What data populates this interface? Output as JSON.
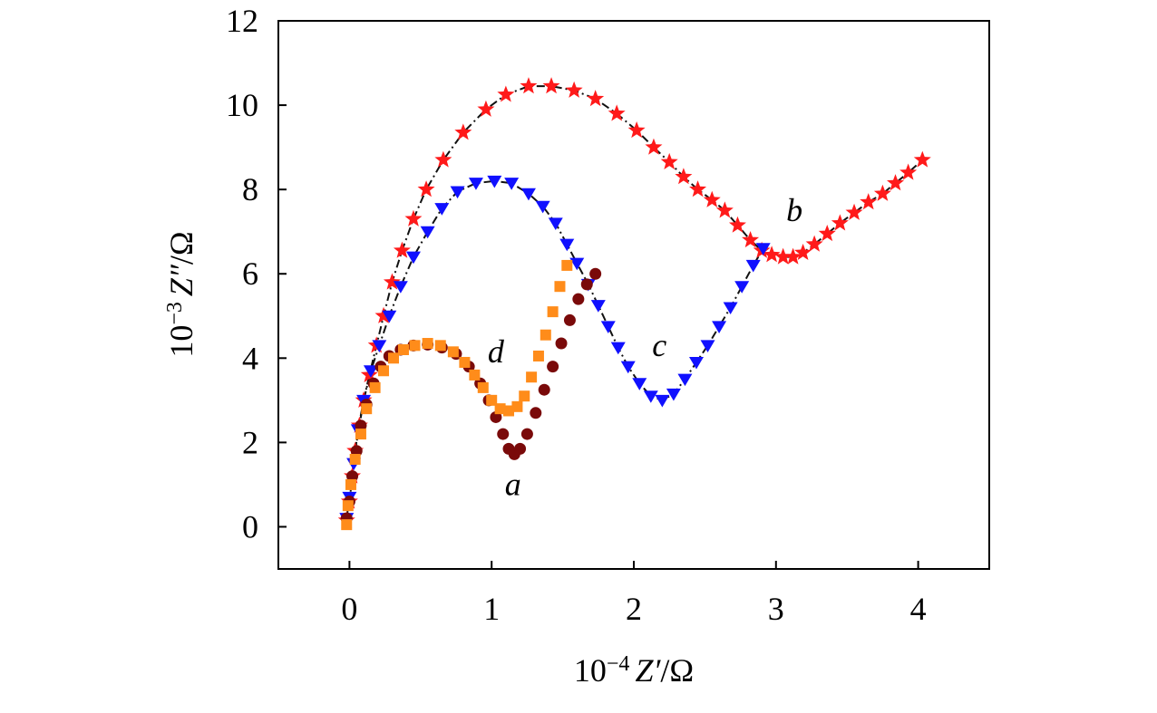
{
  "chart_data": {
    "type": "scatter",
    "title": "",
    "xlabel_prefix": "10",
    "xlabel_exp": "−4",
    "xlabel_var": "Z′",
    "xlabel_unit": "/Ω",
    "ylabel_prefix": "10",
    "ylabel_exp": "−3",
    "ylabel_var": "Z″",
    "ylabel_unit": "/Ω",
    "xlim": [
      -0.5,
      4.5
    ],
    "ylim": [
      -1,
      12
    ],
    "xticks": [
      0,
      1,
      2,
      3,
      4
    ],
    "yticks": [
      0,
      2,
      4,
      6,
      8,
      10,
      12
    ],
    "grid": false,
    "series": [
      {
        "name": "b",
        "marker": "star",
        "color": "#ff1a1a",
        "fit_line": true,
        "label_pos": [
          3.13,
          7.25
        ],
        "points": [
          [
            -0.02,
            0.15
          ],
          [
            0,
            0.6
          ],
          [
            0.02,
            1.2
          ],
          [
            0.04,
            1.8
          ],
          [
            0.07,
            2.4
          ],
          [
            0.1,
            3.0
          ],
          [
            0.14,
            3.6
          ],
          [
            0.19,
            4.3
          ],
          [
            0.24,
            5.0
          ],
          [
            0.3,
            5.8
          ],
          [
            0.37,
            6.55
          ],
          [
            0.45,
            7.3
          ],
          [
            0.54,
            8.0
          ],
          [
            0.66,
            8.7
          ],
          [
            0.8,
            9.35
          ],
          [
            0.96,
            9.9
          ],
          [
            1.1,
            10.25
          ],
          [
            1.26,
            10.45
          ],
          [
            1.42,
            10.45
          ],
          [
            1.58,
            10.35
          ],
          [
            1.73,
            10.15
          ],
          [
            1.88,
            9.8
          ],
          [
            2.02,
            9.4
          ],
          [
            2.14,
            9.0
          ],
          [
            2.25,
            8.65
          ],
          [
            2.35,
            8.3
          ],
          [
            2.45,
            8.0
          ],
          [
            2.55,
            7.75
          ],
          [
            2.64,
            7.5
          ],
          [
            2.73,
            7.15
          ],
          [
            2.82,
            6.8
          ],
          [
            2.9,
            6.55
          ],
          [
            2.97,
            6.45
          ],
          [
            3.05,
            6.4
          ],
          [
            3.12,
            6.4
          ],
          [
            3.19,
            6.5
          ],
          [
            3.27,
            6.7
          ],
          [
            3.36,
            6.95
          ],
          [
            3.45,
            7.2
          ],
          [
            3.55,
            7.45
          ],
          [
            3.65,
            7.7
          ],
          [
            3.75,
            7.9
          ],
          [
            3.84,
            8.15
          ],
          [
            3.93,
            8.4
          ],
          [
            4.03,
            8.7
          ]
        ]
      },
      {
        "name": "c",
        "marker": "triangle-down",
        "color": "#1010ff",
        "fit_line": true,
        "label_pos": [
          2.18,
          4.05
        ],
        "points": [
          [
            -0.02,
            0.2
          ],
          [
            0,
            0.7
          ],
          [
            0.03,
            1.5
          ],
          [
            0.06,
            2.3
          ],
          [
            0.1,
            3.0
          ],
          [
            0.15,
            3.7
          ],
          [
            0.21,
            4.3
          ],
          [
            0.28,
            5.0
          ],
          [
            0.36,
            5.7
          ],
          [
            0.45,
            6.4
          ],
          [
            0.55,
            7.0
          ],
          [
            0.65,
            7.55
          ],
          [
            0.76,
            7.95
          ],
          [
            0.89,
            8.15
          ],
          [
            1.02,
            8.2
          ],
          [
            1.14,
            8.15
          ],
          [
            1.26,
            7.9
          ],
          [
            1.36,
            7.6
          ],
          [
            1.45,
            7.2
          ],
          [
            1.53,
            6.7
          ],
          [
            1.6,
            6.25
          ],
          [
            1.68,
            5.75
          ],
          [
            1.75,
            5.25
          ],
          [
            1.82,
            4.75
          ],
          [
            1.89,
            4.25
          ],
          [
            1.96,
            3.8
          ],
          [
            2.04,
            3.4
          ],
          [
            2.12,
            3.1
          ],
          [
            2.2,
            3.0
          ],
          [
            2.28,
            3.15
          ],
          [
            2.36,
            3.5
          ],
          [
            2.44,
            3.9
          ],
          [
            2.52,
            4.3
          ],
          [
            2.6,
            4.75
          ],
          [
            2.68,
            5.2
          ],
          [
            2.76,
            5.7
          ],
          [
            2.84,
            6.2
          ],
          [
            2.91,
            6.6
          ]
        ]
      },
      {
        "name": "a",
        "marker": "circle",
        "color": "#7a0a0a",
        "fit_line": false,
        "label_pos": [
          1.15,
          0.75
        ],
        "points": [
          [
            -0.02,
            0.2
          ],
          [
            0,
            0.6
          ],
          [
            0.02,
            1.2
          ],
          [
            0.05,
            1.8
          ],
          [
            0.08,
            2.4
          ],
          [
            0.12,
            2.9
          ],
          [
            0.17,
            3.4
          ],
          [
            0.22,
            3.8
          ],
          [
            0.28,
            4.05
          ],
          [
            0.36,
            4.2
          ],
          [
            0.45,
            4.3
          ],
          [
            0.55,
            4.32
          ],
          [
            0.65,
            4.25
          ],
          [
            0.75,
            4.1
          ],
          [
            0.84,
            3.8
          ],
          [
            0.92,
            3.4
          ],
          [
            0.98,
            3.0
          ],
          [
            1.03,
            2.6
          ],
          [
            1.08,
            2.2
          ],
          [
            1.12,
            1.85
          ],
          [
            1.16,
            1.72
          ],
          [
            1.2,
            1.85
          ],
          [
            1.25,
            2.2
          ],
          [
            1.31,
            2.7
          ],
          [
            1.37,
            3.25
          ],
          [
            1.43,
            3.8
          ],
          [
            1.49,
            4.35
          ],
          [
            1.55,
            4.9
          ],
          [
            1.61,
            5.4
          ],
          [
            1.67,
            5.75
          ],
          [
            1.73,
            6.0
          ]
        ]
      },
      {
        "name": "d",
        "marker": "square",
        "color": "#ff8c1a",
        "fit_line": false,
        "label_pos": [
          1.03,
          3.9
        ],
        "points": [
          [
            -0.02,
            0.05
          ],
          [
            -0.01,
            0.5
          ],
          [
            0.01,
            1.0
          ],
          [
            0.04,
            1.6
          ],
          [
            0.08,
            2.2
          ],
          [
            0.12,
            2.8
          ],
          [
            0.18,
            3.3
          ],
          [
            0.24,
            3.7
          ],
          [
            0.31,
            4.0
          ],
          [
            0.38,
            4.2
          ],
          [
            0.46,
            4.3
          ],
          [
            0.55,
            4.35
          ],
          [
            0.64,
            4.3
          ],
          [
            0.73,
            4.15
          ],
          [
            0.81,
            3.9
          ],
          [
            0.88,
            3.6
          ],
          [
            0.94,
            3.3
          ],
          [
            1.0,
            3.0
          ],
          [
            1.06,
            2.8
          ],
          [
            1.12,
            2.75
          ],
          [
            1.18,
            2.85
          ],
          [
            1.23,
            3.1
          ],
          [
            1.28,
            3.55
          ],
          [
            1.33,
            4.05
          ],
          [
            1.38,
            4.55
          ],
          [
            1.43,
            5.1
          ],
          [
            1.48,
            5.7
          ],
          [
            1.53,
            6.2
          ]
        ]
      }
    ]
  }
}
